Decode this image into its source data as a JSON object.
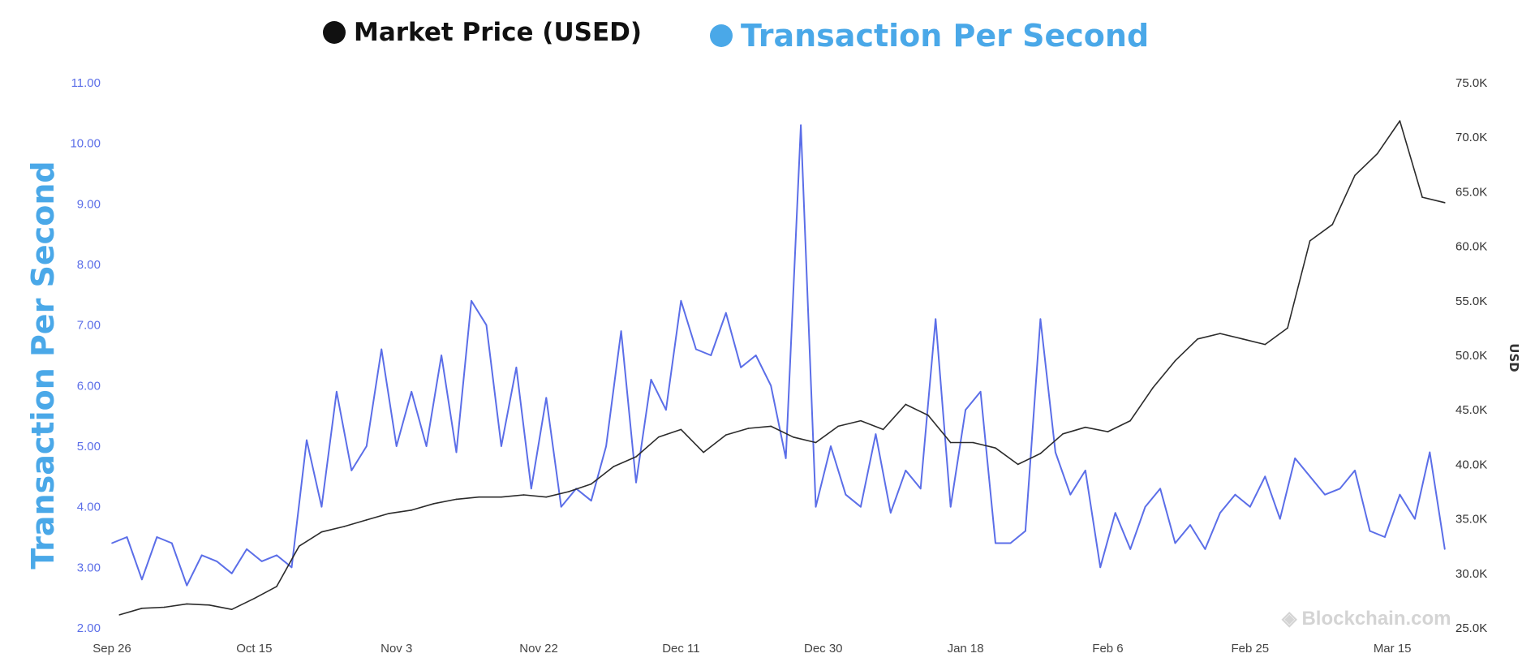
{
  "legend": {
    "price_label": "Market Price (USED)",
    "tps_label": "Transaction Per Second"
  },
  "axes": {
    "left_title": "Transaction Per Second",
    "right_title": "USD"
  },
  "watermark": "Blockchain.com",
  "colors": {
    "tps_line": "#5b6ee8",
    "price_line": "#2b2b2b",
    "left_tick": "#5b6ee8",
    "right_tick": "#333333",
    "legend_tps": "#4aa8e8",
    "legend_price": "#111111"
  },
  "chart_data": {
    "type": "line",
    "x_tick_labels": [
      "Sep 26",
      "Oct 15",
      "Nov 3",
      "Nov 22",
      "Dec 11",
      "Dec 30",
      "Jan 18",
      "Feb 6",
      "Feb 25",
      "Mar 15"
    ],
    "y_left_ticks": [
      "2.00",
      "3.00",
      "4.00",
      "5.00",
      "6.00",
      "7.00",
      "8.00",
      "9.00",
      "10.00",
      "11.00"
    ],
    "y_right_ticks": [
      "25.0K",
      "30.0K",
      "35.0K",
      "40.0K",
      "45.0K",
      "50.0K",
      "55.0K",
      "60.0K",
      "65.0K",
      "70.0K",
      "75.0K"
    ],
    "ylim_left": [
      2,
      11
    ],
    "ylim_right": [
      25000,
      75000
    ],
    "x_range_days": [
      0,
      179
    ],
    "series": [
      {
        "name": "Transaction Per Second",
        "axis": "left",
        "x": [
          0,
          2,
          4,
          6,
          8,
          10,
          12,
          14,
          16,
          18,
          20,
          22,
          24,
          26,
          28,
          30,
          32,
          34,
          36,
          38,
          40,
          42,
          44,
          46,
          48,
          50,
          52,
          54,
          56,
          58,
          60,
          62,
          64,
          66,
          68,
          70,
          72,
          74,
          76,
          78,
          80,
          82,
          84,
          86,
          88,
          90,
          92,
          94,
          96,
          98,
          100,
          102,
          104,
          106,
          108,
          110,
          112,
          114,
          116,
          118,
          120,
          122,
          124,
          126,
          128,
          130,
          132,
          134,
          136,
          138,
          140,
          142,
          144,
          146,
          148,
          150,
          152,
          154,
          156,
          158,
          160,
          162,
          164,
          166,
          168,
          170,
          172,
          174,
          176,
          178
        ],
        "values": [
          3.4,
          3.5,
          2.8,
          3.5,
          3.4,
          2.7,
          3.2,
          3.1,
          2.9,
          3.3,
          3.1,
          3.2,
          3.0,
          5.1,
          4.0,
          5.9,
          4.6,
          5.0,
          6.6,
          5.0,
          5.9,
          5.0,
          6.5,
          4.9,
          7.4,
          7.0,
          5.0,
          6.3,
          4.3,
          5.8,
          4.0,
          4.3,
          4.1,
          5.0,
          6.9,
          4.4,
          6.1,
          5.6,
          7.4,
          6.6,
          6.5,
          7.2,
          6.3,
          6.5,
          6.0,
          4.8,
          10.3,
          4.0,
          5.0,
          4.2,
          4.0,
          5.2,
          3.9,
          4.6,
          4.3,
          7.1,
          4.0,
          5.6,
          5.9,
          3.4,
          3.4,
          3.6,
          7.1,
          4.9,
          4.2,
          4.6,
          3.0,
          3.9,
          3.3,
          4.0,
          4.3,
          3.4,
          3.7,
          3.3,
          3.9,
          4.2,
          4.0,
          4.5,
          3.8,
          4.8,
          4.5,
          4.2,
          4.3,
          4.6,
          3.6,
          3.5,
          4.2,
          3.8,
          4.9,
          3.3
        ],
        "color": "#5b6ee8"
      },
      {
        "name": "Market Price (USED)",
        "axis": "right",
        "x": [
          1,
          4,
          7,
          10,
          13,
          16,
          19,
          22,
          25,
          28,
          31,
          34,
          37,
          40,
          43,
          46,
          49,
          52,
          55,
          58,
          61,
          64,
          67,
          70,
          73,
          76,
          79,
          82,
          85,
          88,
          91,
          94,
          97,
          100,
          103,
          106,
          109,
          112,
          115,
          118,
          121,
          124,
          127,
          130,
          133,
          136,
          139,
          142,
          145,
          148,
          151,
          154,
          157,
          160,
          163,
          166,
          169,
          172,
          175,
          178
        ],
        "values": [
          26200,
          26800,
          26900,
          27200,
          27100,
          26700,
          27700,
          28800,
          32500,
          33800,
          34300,
          34900,
          35500,
          35800,
          36400,
          36800,
          37000,
          37000,
          37200,
          37000,
          37500,
          38200,
          39800,
          40700,
          42500,
          43200,
          41100,
          42700,
          43300,
          43500,
          42500,
          42000,
          43500,
          44000,
          43200,
          45500,
          44500,
          42000,
          42000,
          41500,
          40000,
          41000,
          42800,
          43400,
          43000,
          44000,
          47000,
          49500,
          51500,
          52000,
          51500,
          51000,
          52500,
          60500,
          62000,
          66500,
          68500,
          71500,
          64500,
          64000
        ],
        "color": "#2b2b2b"
      }
    ]
  }
}
